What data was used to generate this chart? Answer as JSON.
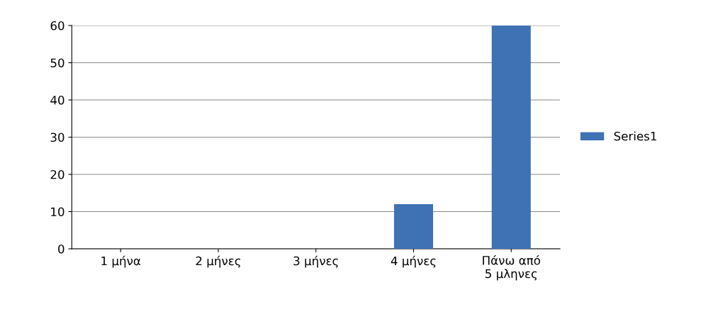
{
  "chart_data": {
    "type": "bar",
    "categories": [
      "1 μήνα",
      "2 μήνες",
      "3 μήνες",
      "4 μήνες",
      "Πάνω από\n5 μληνες"
    ],
    "series": [
      {
        "name": "Series1",
        "color": "#3f72b5",
        "values": [
          0,
          0,
          0,
          12,
          60
        ]
      }
    ],
    "ylim": [
      0,
      60
    ],
    "yticks": [
      0,
      10,
      20,
      30,
      40,
      50,
      60
    ],
    "grid": "y",
    "legend": "right"
  }
}
